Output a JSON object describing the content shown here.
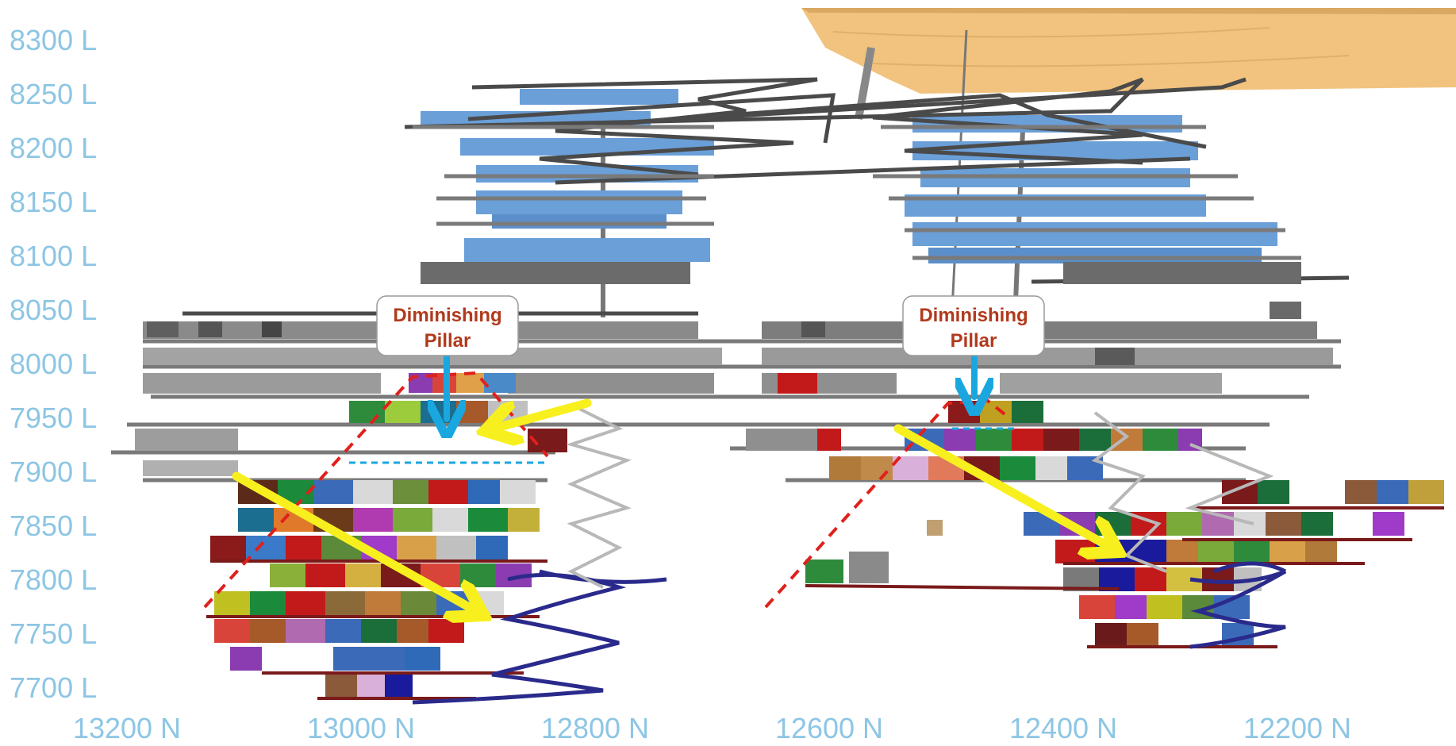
{
  "elevation_labels": [
    "8300 L",
    "8250 L",
    "8200 L",
    "8150 L",
    "8100 L",
    "8050 L",
    "8000 L",
    "7950 L",
    "7900 L",
    "7850 L",
    "7800 L",
    "7750 L",
    "7700 L"
  ],
  "northing_labels": [
    "13200 N",
    "13000 N",
    "12800 N",
    "12600 N",
    "12400 N",
    "12200 N"
  ],
  "callouts": [
    {
      "line1": "Diminishing",
      "line2": "Pillar"
    },
    {
      "line1": "Diminishing",
      "line2": "Pillar"
    }
  ],
  "colors": {
    "axis_text": "#8dc6e4",
    "callout_text": "#b03a1c",
    "callout_arrow": "#1aa7e0",
    "sequence_arrow": "#f7f01e",
    "pillar_boundary": "#e0201c",
    "pillar_cap": "#1aa7e0",
    "upper_stopes": "#6a9fd8",
    "mid_stopes": "#8a8a8a",
    "surface": "#f2c37e",
    "ramp": "#2a2a8c"
  },
  "legend": "none",
  "grid": false
}
